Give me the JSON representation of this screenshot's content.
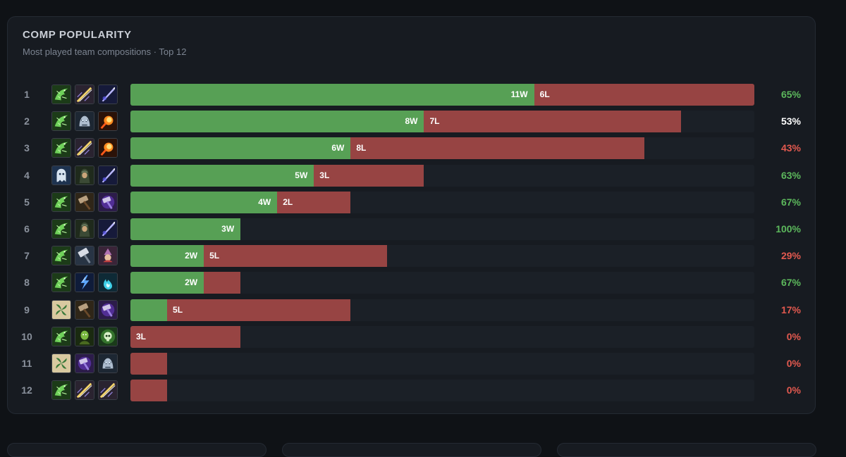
{
  "panel": {
    "title": "COMP POPULARITY",
    "subtitle": "Most played team compositions · Top 12"
  },
  "colors": {
    "win": "#57a055",
    "loss": "#974443",
    "pct_high": "#5cb85c",
    "pct_even": "#ffffff",
    "pct_low": "#e2594f"
  },
  "chart_data": {
    "type": "bar",
    "stacked": true,
    "orientation": "horizontal",
    "title": "COMP POPULARITY",
    "subtitle": "Most played team compositions · Top 12",
    "categories": [
      "1",
      "2",
      "3",
      "4",
      "5",
      "6",
      "7",
      "8",
      "9",
      "10",
      "11",
      "12"
    ],
    "series": [
      {
        "values": [
          11,
          8,
          6,
          5,
          4,
          3,
          2,
          2,
          1,
          0,
          0,
          0
        ]
      },
      {
        "values": [
          6,
          7,
          8,
          3,
          2,
          0,
          5,
          1,
          5,
          3,
          1,
          1
        ]
      }
    ],
    "xlim": [
      0,
      17
    ],
    "rows": [
      {
        "rank": "1",
        "wins": 11,
        "losses": 6,
        "win_label": "11W",
        "loss_label": "6L",
        "pct": "65%",
        "icons": [
          "dragon-icon",
          "golden-spear-icon",
          "violet-blade-icon"
        ]
      },
      {
        "rank": "2",
        "wins": 8,
        "losses": 7,
        "win_label": "8W",
        "loss_label": "7L",
        "pct": "53%",
        "icons": [
          "dragon-icon",
          "frost-beast-icon",
          "fireball-icon"
        ]
      },
      {
        "rank": "3",
        "wins": 6,
        "losses": 8,
        "win_label": "6W",
        "loss_label": "8L",
        "pct": "43%",
        "icons": [
          "dragon-icon",
          "golden-spear-icon",
          "fireball-icon"
        ]
      },
      {
        "rank": "4",
        "wins": 5,
        "losses": 3,
        "win_label": "5W",
        "loss_label": "3L",
        "pct": "63%",
        "icons": [
          "ghost-icon",
          "hooded-figure-icon",
          "violet-blade-icon"
        ]
      },
      {
        "rank": "5",
        "wins": 4,
        "losses": 2,
        "win_label": "4W",
        "loss_label": "2L",
        "pct": "67%",
        "icons": [
          "dragon-icon",
          "hammer-icon",
          "arcane-hammer-icon"
        ]
      },
      {
        "rank": "6",
        "wins": 3,
        "losses": 0,
        "win_label": "3W",
        "loss_label": "",
        "pct": "100%",
        "icons": [
          "dragon-icon",
          "hooded-figure-icon",
          "violet-blade-icon"
        ]
      },
      {
        "rank": "7",
        "wins": 2,
        "losses": 5,
        "win_label": "2W",
        "loss_label": "5L",
        "pct": "29%",
        "icons": [
          "dragon-icon",
          "silver-hammer-icon",
          "mage-icon"
        ]
      },
      {
        "rank": "8",
        "wins": 2,
        "losses": 1,
        "win_label": "2W",
        "loss_label": "",
        "pct": "67%",
        "icons": [
          "dragon-icon",
          "lightning-icon",
          "blue-flame-icon"
        ]
      },
      {
        "rank": "9",
        "wins": 1,
        "losses": 5,
        "win_label": "",
        "loss_label": "5L",
        "pct": "17%",
        "icons": [
          "leaf-icon",
          "hammer-icon",
          "arcane-hammer-icon"
        ]
      },
      {
        "rank": "10",
        "wins": 0,
        "losses": 3,
        "win_label": "",
        "loss_label": "3L",
        "pct": "0%",
        "icons": [
          "dragon-icon",
          "green-warrior-icon",
          "skull-icon"
        ]
      },
      {
        "rank": "11",
        "wins": 0,
        "losses": 1,
        "win_label": "",
        "loss_label": "",
        "pct": "0%",
        "icons": [
          "leaf-icon",
          "arcane-hammer-icon",
          "frost-beast-icon"
        ]
      },
      {
        "rank": "12",
        "wins": 0,
        "losses": 1,
        "win_label": "",
        "loss_label": "",
        "pct": "0%",
        "icons": [
          "dragon-icon",
          "golden-spear-icon",
          "golden-spear-icon"
        ]
      }
    ]
  }
}
